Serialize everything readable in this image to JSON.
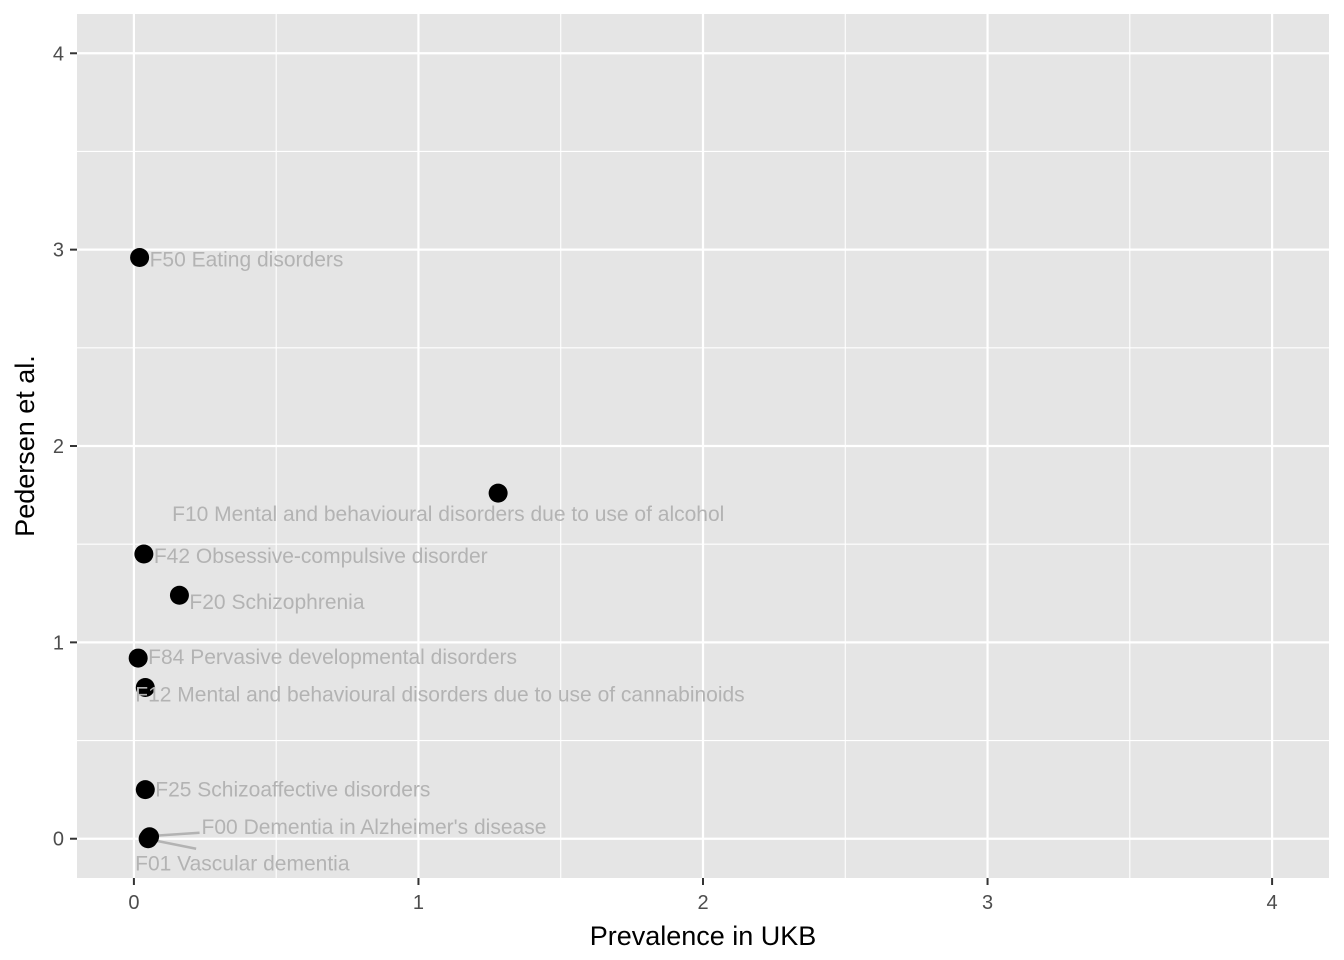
{
  "chart_data": {
    "type": "scatter",
    "xlabel": "Prevalence in UKB",
    "ylabel": "Pedersen et al.",
    "xlim": [
      -0.2,
      4.2
    ],
    "ylim": [
      -0.2,
      4.2
    ],
    "x_ticks": [
      0,
      1,
      2,
      3,
      4
    ],
    "y_ticks": [
      0,
      1,
      2,
      3,
      4
    ],
    "x_tick_labels": [
      "0",
      "1",
      "2",
      "3",
      "4"
    ],
    "y_tick_labels": [
      "0",
      "1",
      "2",
      "3",
      "4"
    ],
    "grid": true,
    "legend": "none",
    "background_color": "#e5e5e5",
    "grid_color": "#ffffff",
    "point_color": "#000000",
    "label_color": "#b3b3b3",
    "points": [
      {
        "label": "F50 Eating disorders",
        "x": 0.02,
        "y": 2.96
      },
      {
        "label": "F10 Mental and behavioural disorders due to use of alcohol",
        "x": 1.28,
        "y": 1.76
      },
      {
        "label": "F42 Obsessive-compulsive disorder",
        "x": 0.035,
        "y": 1.45
      },
      {
        "label": "F20 Schizophrenia",
        "x": 0.16,
        "y": 1.24
      },
      {
        "label": "F84 Pervasive developmental disorders",
        "x": 0.015,
        "y": 0.92
      },
      {
        "label": "F12 Mental and behavioural disorders due to use of cannabinoids",
        "x": 0.04,
        "y": 0.77
      },
      {
        "label": "F25 Schizoaffective disorders",
        "x": 0.04,
        "y": 0.25
      },
      {
        "label": "F00 Dementia in Alzheimer's disease",
        "x": 0.055,
        "y": 0.01
      },
      {
        "label": "F01 Vascular dementia",
        "x": 0.05,
        "y": 0.0
      }
    ]
  }
}
